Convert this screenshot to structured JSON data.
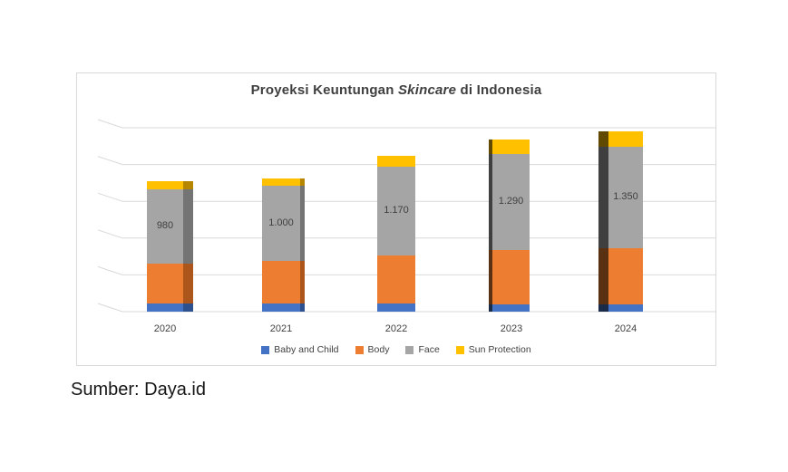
{
  "chart_data": {
    "type": "bar",
    "stacked": true,
    "style": "3d",
    "title": "Proyeksi Keuntungan Skincare di Indonesia",
    "title_parts": {
      "prefix": "Proyeksi Keuntungan ",
      "italic": "Skincare",
      "suffix": " di Indonesia"
    },
    "categories": [
      "2020",
      "2021",
      "2022",
      "2023",
      "2024"
    ],
    "series": [
      {
        "name": "Baby and Child",
        "color": "#4472C4",
        "values": [
          60,
          60,
          60,
          55,
          55
        ]
      },
      {
        "name": "Body",
        "color": "#ED7D31",
        "values": [
          300,
          320,
          365,
          405,
          420
        ]
      },
      {
        "name": "Face",
        "color": "#A5A5A5",
        "values": [
          560,
          565,
          660,
          725,
          760
        ]
      },
      {
        "name": "Sun Protection",
        "color": "#FFC000",
        "values": [
          60,
          55,
          85,
          105,
          115
        ]
      }
    ],
    "bar_total_labels": [
      "980",
      "1.000",
      "1.170",
      "1.290",
      "1.350"
    ],
    "bar_totals": [
      980,
      1000,
      1170,
      1290,
      1350
    ],
    "labels_placed_on_series": "Face",
    "ylim": [
      0,
      1380
    ],
    "gridline_count": 6,
    "y_axis_labels_hidden": true,
    "grid": true,
    "legend_position": "bottom"
  },
  "colors": {
    "background": "#FFFFFF",
    "panel_border": "#D9D9D9",
    "gridline": "#D9D9D9",
    "title_text": "#3F3F3F",
    "label_text": "#404040",
    "source_text": "#161616"
  },
  "source": {
    "text": "Sumber: Daya.id"
  }
}
